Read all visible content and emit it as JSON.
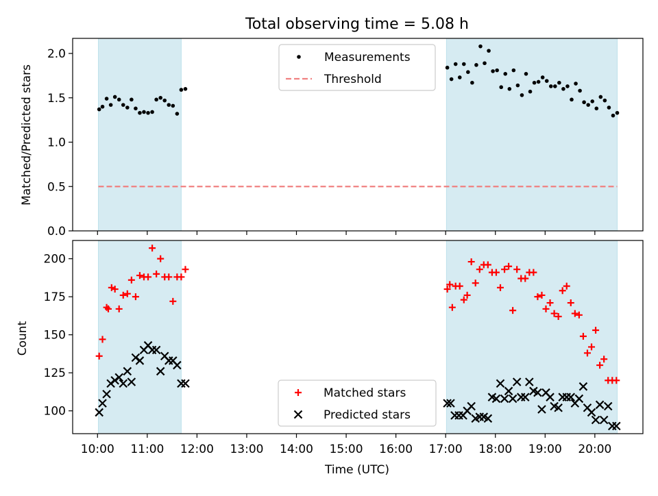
{
  "chart_data": [
    {
      "type": "scatter",
      "title": "Total observing time = 5.08 h",
      "xlabel": "",
      "ylabel": "Matched/Predicted stars",
      "ylim": [
        0,
        2.17
      ],
      "yticks": [
        0.0,
        0.5,
        1.0,
        1.5,
        2.0
      ],
      "ytick_labels": [
        "0.0",
        "0.5",
        "1.0",
        "1.5",
        "2.0"
      ],
      "grid": false,
      "legend": "upper-center",
      "shaded_intervals": [
        [
          "10:01",
          "11:41"
        ],
        [
          "17:01",
          "20:27"
        ]
      ],
      "threshold": {
        "name": "Threshold",
        "value": 0.5,
        "x_range": [
          "10:01",
          "20:27"
        ],
        "color": "#f08080",
        "style": "dashed"
      },
      "series": [
        {
          "name": "Measurements",
          "marker": "dot",
          "color": "#000000",
          "x": [
            "10:02",
            "10:06",
            "10:11",
            "10:16",
            "10:21",
            "10:26",
            "10:31",
            "10:36",
            "10:41",
            "10:46",
            "10:51",
            "10:56",
            "11:01",
            "11:06",
            "11:11",
            "11:16",
            "11:21",
            "11:26",
            "11:31",
            "11:36",
            "11:41",
            "11:46",
            "17:02",
            "17:07",
            "17:12",
            "17:17",
            "17:22",
            "17:27",
            "17:32",
            "17:37",
            "17:42",
            "17:47",
            "17:52",
            "17:57",
            "18:02",
            "18:07",
            "18:12",
            "18:17",
            "18:22",
            "18:27",
            "18:32",
            "18:37",
            "18:42",
            "18:47",
            "18:52",
            "18:57",
            "19:02",
            "19:07",
            "19:12",
            "19:17",
            "19:22",
            "19:27",
            "19:32",
            "19:37",
            "19:42",
            "19:47",
            "19:52",
            "19:57",
            "20:02",
            "20:07",
            "20:12",
            "20:17",
            "20:22",
            "20:27"
          ],
          "y": [
            1.37,
            1.4,
            1.49,
            1.42,
            1.51,
            1.48,
            1.42,
            1.39,
            1.48,
            1.38,
            1.33,
            1.34,
            1.33,
            1.34,
            1.48,
            1.5,
            1.47,
            1.42,
            1.41,
            1.32,
            1.59,
            1.6,
            1.84,
            1.71,
            1.88,
            1.73,
            1.88,
            1.79,
            1.67,
            1.87,
            2.08,
            1.89,
            2.03,
            1.8,
            1.81,
            1.62,
            1.77,
            1.6,
            1.81,
            1.64,
            1.53,
            1.77,
            1.57,
            1.67,
            1.68,
            1.73,
            1.69,
            1.63,
            1.63,
            1.67,
            1.6,
            1.63,
            1.48,
            1.66,
            1.58,
            1.45,
            1.42,
            1.46,
            1.38,
            1.51,
            1.47,
            1.39,
            1.3,
            1.33
          ]
        }
      ]
    },
    {
      "type": "scatter",
      "title": "",
      "xlabel": "Time (UTC)",
      "ylabel": "Count",
      "ylim": [
        85,
        212
      ],
      "yticks": [
        100,
        125,
        150,
        175,
        200
      ],
      "ytick_labels": [
        "100",
        "125",
        "150",
        "175",
        "200"
      ],
      "xlim": [
        "9:30",
        "20:58"
      ],
      "xticks": [
        "10:00",
        "11:00",
        "12:00",
        "13:00",
        "14:00",
        "15:00",
        "16:00",
        "17:00",
        "18:00",
        "19:00",
        "20:00"
      ],
      "grid": false,
      "legend": "lower-center",
      "shaded_intervals": [
        [
          "10:01",
          "11:41"
        ],
        [
          "17:01",
          "20:27"
        ]
      ],
      "series": [
        {
          "name": "Matched stars",
          "marker": "plus",
          "color": "#ff0000",
          "x": [
            "10:02",
            "10:06",
            "10:11",
            "10:13",
            "10:17",
            "10:21",
            "10:26",
            "10:31",
            "10:36",
            "10:41",
            "10:46",
            "10:51",
            "10:56",
            "11:01",
            "11:06",
            "11:11",
            "11:16",
            "11:21",
            "11:26",
            "11:31",
            "11:36",
            "11:41",
            "11:46",
            "17:02",
            "17:05",
            "17:08",
            "17:12",
            "17:17",
            "17:22",
            "17:26",
            "17:31",
            "17:36",
            "17:41",
            "17:46",
            "17:51",
            "17:56",
            "18:01",
            "18:06",
            "18:11",
            "18:16",
            "18:21",
            "18:26",
            "18:31",
            "18:36",
            "18:41",
            "18:46",
            "18:51",
            "18:56",
            "19:01",
            "19:06",
            "19:11",
            "19:16",
            "19:21",
            "19:26",
            "19:31",
            "19:36",
            "19:41",
            "19:46",
            "19:51",
            "19:56",
            "20:01",
            "20:06",
            "20:11",
            "20:16",
            "20:21",
            "20:26"
          ],
          "y": [
            136,
            147,
            168,
            167,
            181,
            180,
            167,
            176,
            177,
            186,
            175,
            189,
            188,
            188,
            207,
            190,
            200,
            188,
            188,
            172,
            188,
            188,
            193,
            180,
            183,
            168,
            182,
            182,
            173,
            176,
            198,
            184,
            193,
            196,
            196,
            191,
            191,
            181,
            193,
            195,
            166,
            193,
            187,
            187,
            191,
            191,
            175,
            176,
            167,
            171,
            164,
            162,
            179,
            182,
            171,
            164,
            163,
            149,
            138,
            142,
            153,
            130,
            134,
            120,
            120,
            120
          ]
        },
        {
          "name": "Predicted stars",
          "marker": "x",
          "color": "#000000",
          "x": [
            "10:02",
            "10:06",
            "10:11",
            "10:16",
            "10:21",
            "10:26",
            "10:31",
            "10:36",
            "10:41",
            "10:46",
            "10:51",
            "10:56",
            "11:01",
            "11:06",
            "11:11",
            "11:16",
            "11:21",
            "11:26",
            "11:31",
            "11:36",
            "11:41",
            "11:46",
            "17:02",
            "17:06",
            "17:11",
            "17:16",
            "17:21",
            "17:26",
            "17:31",
            "17:36",
            "17:41",
            "17:46",
            "17:51",
            "17:56",
            "18:01",
            "18:06",
            "18:11",
            "18:16",
            "18:21",
            "18:26",
            "18:31",
            "18:36",
            "18:41",
            "18:46",
            "18:51",
            "18:56",
            "19:01",
            "19:06",
            "19:11",
            "19:16",
            "19:21",
            "19:26",
            "19:31",
            "19:36",
            "19:41",
            "19:46",
            "19:51",
            "19:56",
            "20:01",
            "20:06",
            "20:11",
            "20:16",
            "20:21",
            "20:26"
          ],
          "y": [
            99,
            105,
            111,
            118,
            120,
            122,
            118,
            126,
            119,
            135,
            133,
            140,
            143,
            140,
            140,
            126,
            136,
            133,
            133,
            130,
            118,
            118,
            105,
            105,
            97,
            97,
            97,
            100,
            103,
            95,
            96,
            96,
            95,
            109,
            108,
            118,
            108,
            113,
            108,
            119,
            109,
            109,
            119,
            113,
            112,
            101,
            112,
            109,
            103,
            102,
            109,
            109,
            109,
            105,
            108,
            116,
            102,
            99,
            94,
            104,
            94,
            103,
            90,
            90
          ]
        }
      ],
      "legend_labels": [
        "Matched stars",
        "Predicted stars"
      ]
    }
  ]
}
